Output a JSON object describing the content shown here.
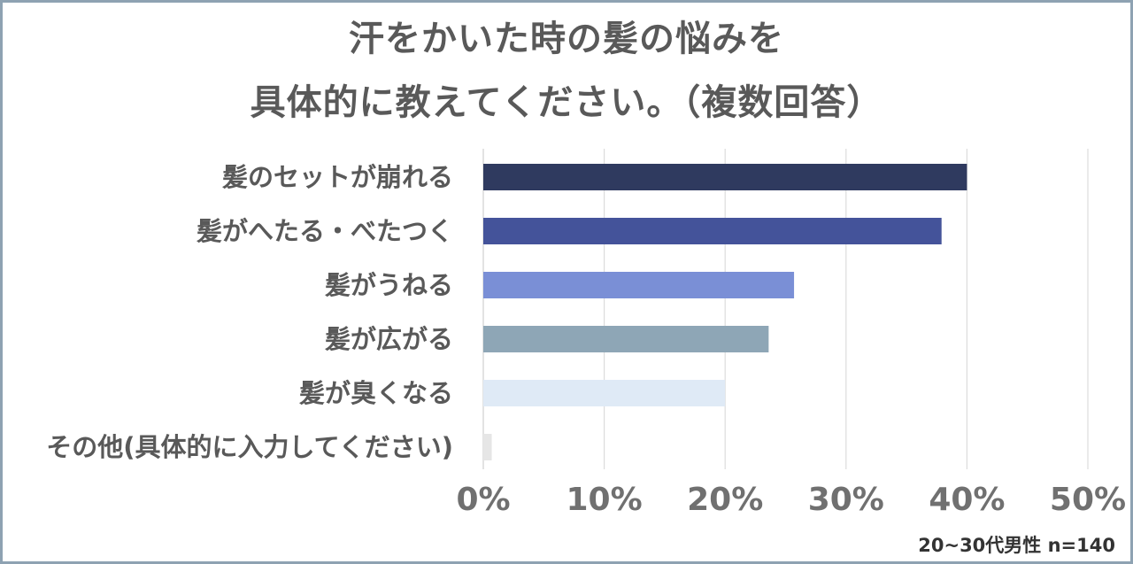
{
  "title_line1": "汗をかいた時の髪の悩みを",
  "title_line2": "具体的に教えてください。（複数回答）",
  "note": "20~30代男性 n=140",
  "chart_data": {
    "type": "bar",
    "orientation": "horizontal",
    "categories": [
      "髪のセットが崩れる",
      "髪がへたる・べたつく",
      "髪がうねる",
      "髪が広がる",
      "髪が臭くなる",
      "その他(具体的に入力してください)"
    ],
    "values": [
      40.0,
      37.9,
      25.7,
      23.6,
      20.0,
      0.7
    ],
    "colors": [
      "#2f3a5f",
      "#44539a",
      "#7a8fd6",
      "#8ea6b6",
      "#dfeaf6",
      "#e6e6e6"
    ],
    "xlim": [
      0,
      50
    ],
    "xticks": [
      "0%",
      "10%",
      "20%",
      "30%",
      "40%",
      "50%"
    ],
    "grid": true,
    "legend": "none"
  }
}
